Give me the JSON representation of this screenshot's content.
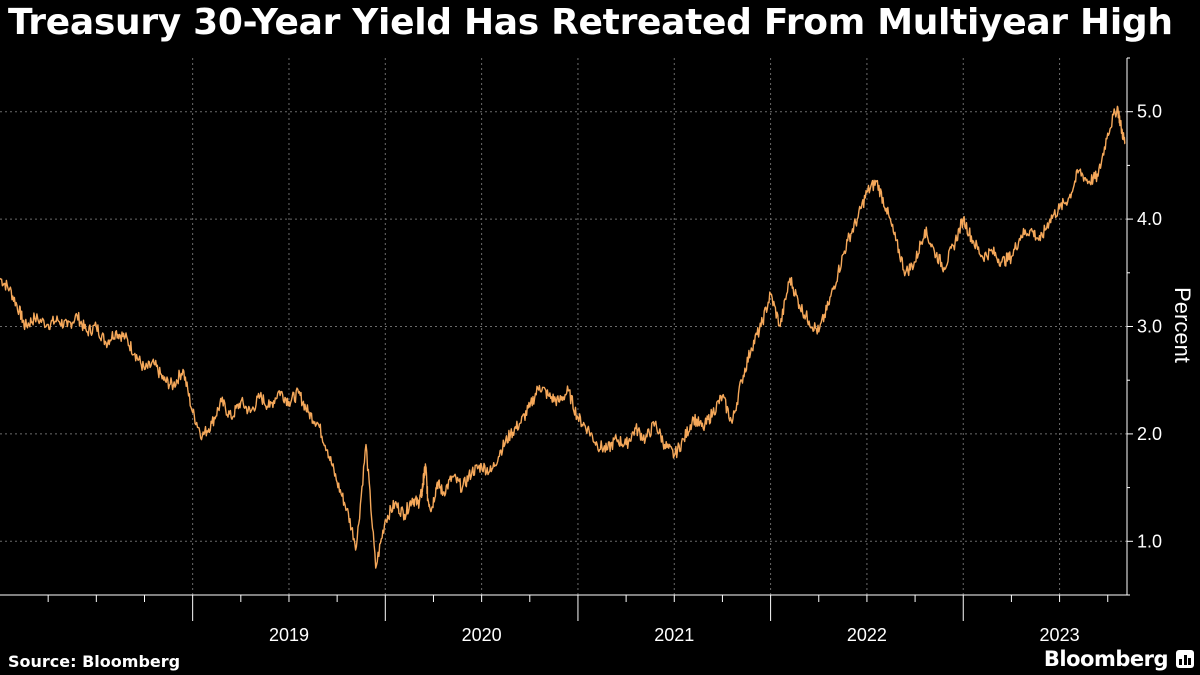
{
  "header": {
    "title": "Treasury 30-Year Yield Has Retreated From Multiyear High"
  },
  "footer": {
    "source": "Source: Bloomberg",
    "brand": "Bloomberg"
  },
  "colors": {
    "background": "#000000",
    "line": "#f5a85a",
    "grid": "#6b6b6b",
    "text": "#ffffff"
  },
  "chart_data": {
    "type": "line",
    "title": "Treasury 30-Year Yield Has Retreated From Multiyear High",
    "xlabel": "",
    "ylabel": "Percent",
    "ylim": [
      0.5,
      5.5
    ],
    "xlim": [
      2018.0,
      2023.85
    ],
    "yticks": [
      1.0,
      2.0,
      3.0,
      4.0,
      5.0
    ],
    "ytick_labels": [
      "1.0",
      "2.0",
      "3.0",
      "4.0",
      "5.0"
    ],
    "xtick_labels": [
      "2019",
      "2020",
      "2021",
      "2022",
      "2023"
    ],
    "grid": true,
    "y_axis_side": "right",
    "series": [
      {
        "name": "Treasury 30-Year Yield",
        "x": [
          2018.0,
          2018.05,
          2018.1,
          2018.13,
          2018.18,
          2018.25,
          2018.3,
          2018.35,
          2018.4,
          2018.45,
          2018.5,
          2018.55,
          2018.6,
          2018.65,
          2018.7,
          2018.75,
          2018.8,
          2018.85,
          2018.9,
          2018.95,
          2019.0,
          2019.05,
          2019.1,
          2019.15,
          2019.2,
          2019.25,
          2019.3,
          2019.35,
          2019.4,
          2019.45,
          2019.5,
          2019.55,
          2019.6,
          2019.65,
          2019.7,
          2019.75,
          2019.8,
          2019.85,
          2019.9,
          2019.95,
          2020.0,
          2020.05,
          2020.1,
          2020.14,
          2020.17,
          2020.19,
          2020.2,
          2020.21,
          2020.22,
          2020.24,
          2020.27,
          2020.3,
          2020.35,
          2020.4,
          2020.45,
          2020.5,
          2020.55,
          2020.6,
          2020.65,
          2020.7,
          2020.75,
          2020.8,
          2020.85,
          2020.9,
          2020.95,
          2021.0,
          2021.05,
          2021.1,
          2021.15,
          2021.2,
          2021.25,
          2021.3,
          2021.35,
          2021.4,
          2021.45,
          2021.5,
          2021.55,
          2021.6,
          2021.65,
          2021.7,
          2021.75,
          2021.8,
          2021.85,
          2021.9,
          2021.95,
          2022.0,
          2022.05,
          2022.1,
          2022.15,
          2022.2,
          2022.25,
          2022.3,
          2022.35,
          2022.4,
          2022.45,
          2022.5,
          2022.55,
          2022.6,
          2022.65,
          2022.7,
          2022.75,
          2022.8,
          2022.85,
          2022.9,
          2022.95,
          2023.0,
          2023.05,
          2023.1,
          2023.15,
          2023.2,
          2023.25,
          2023.3,
          2023.35,
          2023.4,
          2023.45,
          2023.5,
          2023.55,
          2023.6,
          2023.65,
          2023.7,
          2023.75,
          2023.8,
          2023.82,
          2023.84
        ],
        "y": [
          3.45,
          3.35,
          3.15,
          3.0,
          3.08,
          3.02,
          3.06,
          3.0,
          3.1,
          2.95,
          3.0,
          2.85,
          2.95,
          2.9,
          2.75,
          2.6,
          2.65,
          2.5,
          2.45,
          2.6,
          2.2,
          1.98,
          2.1,
          2.3,
          2.15,
          2.3,
          2.2,
          2.35,
          2.25,
          2.4,
          2.3,
          2.38,
          2.2,
          2.1,
          1.85,
          1.55,
          1.3,
          0.95,
          1.9,
          0.75,
          1.2,
          1.35,
          1.25,
          1.4,
          1.35,
          1.45,
          1.6,
          1.7,
          1.4,
          1.3,
          1.55,
          1.45,
          1.6,
          1.5,
          1.65,
          1.7,
          1.65,
          1.85,
          2.0,
          2.1,
          2.25,
          2.45,
          2.35,
          2.3,
          2.4,
          2.15,
          2.05,
          1.9,
          1.85,
          1.95,
          1.9,
          2.05,
          1.95,
          2.1,
          1.9,
          1.8,
          1.95,
          2.15,
          2.05,
          2.2,
          2.35,
          2.1,
          2.5,
          2.8,
          3.0,
          3.3,
          3.0,
          3.45,
          3.2,
          3.05,
          2.95,
          3.2,
          3.5,
          3.8,
          4.0,
          4.25,
          4.35,
          4.1,
          3.8,
          3.5,
          3.6,
          3.9,
          3.7,
          3.55,
          3.75,
          4.0,
          3.8,
          3.65,
          3.7,
          3.6,
          3.65,
          3.85,
          3.9,
          3.8,
          4.0,
          4.1,
          4.2,
          4.45,
          4.35,
          4.4,
          4.8,
          5.05,
          4.85,
          4.7
        ]
      }
    ]
  }
}
